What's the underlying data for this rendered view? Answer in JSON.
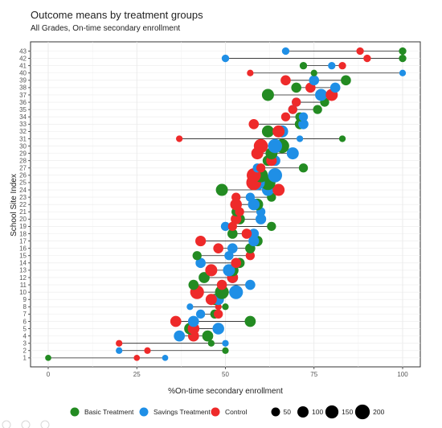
{
  "chart_data": {
    "type": "scatter",
    "subtype": "dumbbell",
    "title": "Outcome means by treatment groups",
    "subtitle": "All Grades, On-time secondary enrollment",
    "xlabel": "%On-time secondary enrollment",
    "ylabel": "School Site Index",
    "xlim": [
      0,
      100
    ],
    "xticks": [
      0,
      25,
      50,
      75,
      100
    ],
    "ylim": [
      1,
      43
    ],
    "grid": true,
    "legend_position": "bottom",
    "colors": {
      "Basic Treatment": "#238b22",
      "Savings Treatment": "#1f8fe6",
      "Control": "#ee2a2a"
    },
    "legend": {
      "groups": [
        "Basic Treatment",
        "Savings Treatment",
        "Control"
      ],
      "size_values": [
        50,
        100,
        150,
        200
      ]
    },
    "sites": [
      {
        "site": 1,
        "basic": 0,
        "savings": 33,
        "control": 25,
        "size": 15
      },
      {
        "site": 2,
        "basic": 50,
        "savings": 20,
        "control": 28,
        "size": 20
      },
      {
        "site": 3,
        "basic": 46,
        "savings": 50,
        "control": 20,
        "size": 20
      },
      {
        "site": 4,
        "basic": 45,
        "savings": 37,
        "control": 41,
        "size": 95
      },
      {
        "site": 5,
        "basic": 40,
        "savings": 48,
        "control": 41,
        "size": 110
      },
      {
        "site": 6,
        "basic": 57,
        "savings": 41,
        "control": 36,
        "size": 95
      },
      {
        "site": 7,
        "basic": 47,
        "savings": 43,
        "control": 48,
        "size": 55
      },
      {
        "site": 8,
        "basic": 50,
        "savings": 40,
        "control": 48,
        "size": 20
      },
      {
        "site": 9,
        "basic": 47,
        "savings": 48,
        "control": 46,
        "size": 100
      },
      {
        "site": 10,
        "basic": 49,
        "savings": 53,
        "control": 42,
        "size": 170
      },
      {
        "site": 11,
        "basic": 41,
        "savings": 57,
        "control": 49,
        "size": 75
      },
      {
        "site": 12,
        "basic": 44,
        "savings": 52,
        "control": 52,
        "size": 95
      },
      {
        "site": 13,
        "basic": 52,
        "savings": 51,
        "control": 46,
        "size": 120
      },
      {
        "site": 14,
        "basic": 54,
        "savings": 43,
        "control": 53,
        "size": 75
      },
      {
        "site": 15,
        "basic": 42,
        "savings": 51,
        "control": 57,
        "size": 55
      },
      {
        "site": 16,
        "basic": 57,
        "savings": 52,
        "control": 48,
        "size": 75
      },
      {
        "site": 17,
        "basic": 59,
        "savings": 58,
        "control": 43,
        "size": 85
      },
      {
        "site": 18,
        "basic": 52,
        "savings": 58,
        "control": 56,
        "size": 75
      },
      {
        "site": 19,
        "basic": 63,
        "savings": 50,
        "control": 52,
        "size": 55
      },
      {
        "site": 20,
        "basic": 54,
        "savings": 60,
        "control": 53,
        "size": 85
      },
      {
        "site": 21,
        "basic": 53,
        "savings": 60,
        "control": 54,
        "size": 55
      },
      {
        "site": 22,
        "basic": 59,
        "savings": 58,
        "control": 53,
        "size": 110
      },
      {
        "site": 23,
        "basic": 63,
        "savings": 57,
        "control": 53,
        "size": 55
      },
      {
        "site": 24,
        "basic": 49,
        "savings": 62,
        "control": 65,
        "size": 120
      },
      {
        "site": 25,
        "basic": 62,
        "savings": 59,
        "control": 58,
        "size": 210
      },
      {
        "site": 26,
        "basic": 60,
        "savings": 64,
        "control": 58,
        "size": 180
      },
      {
        "site": 27,
        "basic": 72,
        "savings": 59,
        "control": 60,
        "size": 55
      },
      {
        "site": 28,
        "basic": 62,
        "savings": 64,
        "control": 63,
        "size": 85
      },
      {
        "site": 29,
        "basic": 63,
        "savings": 69,
        "control": 59,
        "size": 120
      },
      {
        "site": 30,
        "basic": 66,
        "savings": 64,
        "control": 60,
        "size": 180
      },
      {
        "site": 31,
        "basic": 83,
        "savings": 71,
        "control": 37,
        "size": 20
      },
      {
        "site": 32,
        "basic": 62,
        "savings": 66,
        "control": 65,
        "size": 120
      },
      {
        "site": 33,
        "basic": 71,
        "savings": 72,
        "control": 58,
        "size": 75
      },
      {
        "site": 34,
        "basic": 71,
        "savings": 72,
        "control": 67,
        "size": 55
      },
      {
        "site": 35,
        "basic": 76,
        "savings": 69,
        "control": 69,
        "size": 55
      },
      {
        "site": 36,
        "basic": 78,
        "savings": 70,
        "control": 70,
        "size": 55
      },
      {
        "site": 37,
        "basic": 62,
        "savings": 77,
        "control": 80,
        "size": 120
      },
      {
        "site": 38,
        "basic": 70,
        "savings": 81,
        "control": 74,
        "size": 75
      },
      {
        "site": 39,
        "basic": 84,
        "savings": 75,
        "control": 67,
        "size": 75
      },
      {
        "site": 40,
        "basic": 75,
        "savings": 100,
        "control": 57,
        "size": 20
      },
      {
        "site": 41,
        "basic": 72,
        "savings": 80,
        "control": 83,
        "size": 30
      },
      {
        "site": 42,
        "basic": 100,
        "savings": 50,
        "control": 90,
        "size": 30
      },
      {
        "site": 43,
        "basic": 100,
        "savings": 67,
        "control": 88,
        "size": 30
      }
    ]
  }
}
